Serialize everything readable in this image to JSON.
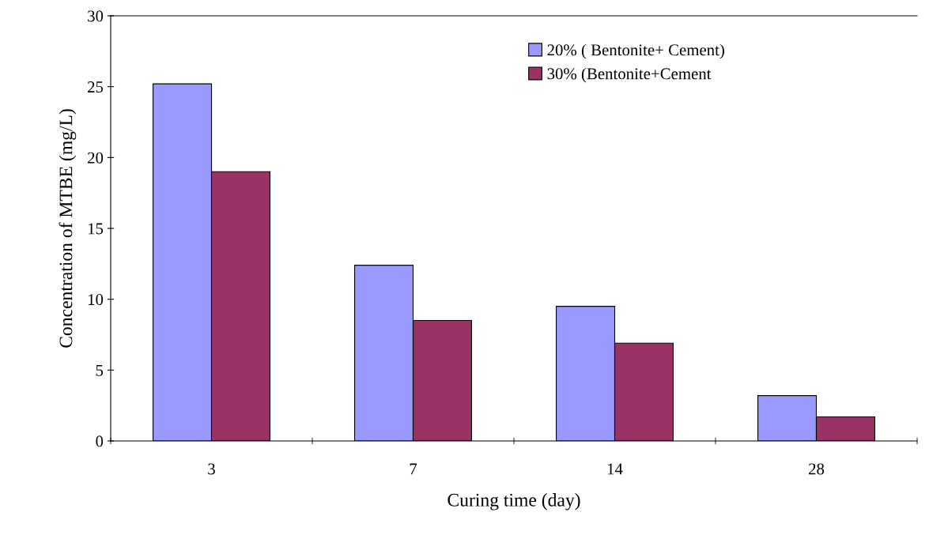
{
  "chart_data": {
    "type": "bar",
    "xlabel": "Curing time (day)",
    "ylabel": "Concentration of MTBE (mg/L)",
    "categories": [
      "3",
      "7",
      "14",
      "28"
    ],
    "series": [
      {
        "name": "20% ( Bentonite+ Cement)",
        "color": "#9999ff",
        "values": [
          25.2,
          12.4,
          9.5,
          3.2
        ]
      },
      {
        "name": "30% (Bentonite+Cement",
        "color": "#993366",
        "values": [
          19.0,
          8.5,
          6.9,
          1.7
        ]
      }
    ],
    "ylim": [
      0,
      30
    ],
    "yticks": [
      0,
      5,
      10,
      15,
      20,
      25,
      30
    ],
    "grid": false,
    "legend": "top right"
  }
}
